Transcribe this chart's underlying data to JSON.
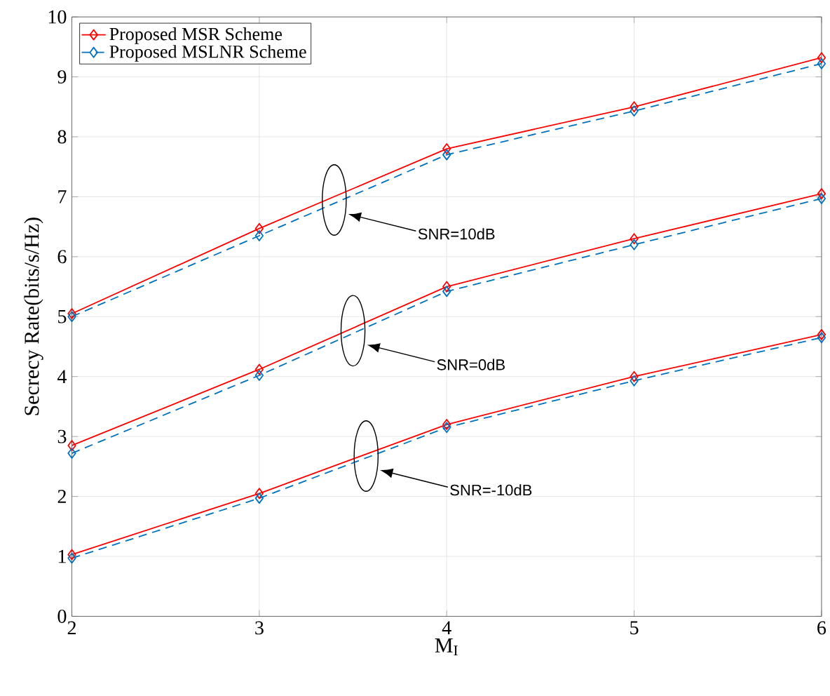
{
  "chart_data": {
    "type": "line",
    "xlabel": "M$_{I}$",
    "ylabel": "Secrecy Rate(bits/s/Hz)",
    "x": [
      2,
      3,
      4,
      5,
      6
    ],
    "xlim": [
      2,
      6
    ],
    "xticks": [
      2,
      3,
      4,
      5,
      6
    ],
    "ylim": [
      0,
      10
    ],
    "yticks": [
      0,
      1,
      2,
      3,
      4,
      5,
      6,
      7,
      8,
      9,
      10
    ],
    "grid": true,
    "legend": "top left",
    "marker": "diamond",
    "series": [
      {
        "name": "Proposed MSR Scheme",
        "color": "#ff0000",
        "line_style": "solid",
        "values": [
          5.05,
          6.47,
          7.8,
          8.5,
          9.32
        ]
      },
      {
        "name": "Proposed MSLNR Scheme",
        "color": "#0072bd",
        "line_style": "dashed",
        "values": [
          5.0,
          6.35,
          7.7,
          8.43,
          9.22
        ]
      },
      {
        "color": "#ff0000",
        "line_style": "solid",
        "values": [
          2.85,
          4.12,
          5.5,
          6.3,
          7.05
        ]
      },
      {
        "color": "#0072bd",
        "line_style": "dashed",
        "values": [
          2.72,
          4.02,
          5.42,
          6.2,
          6.97
        ]
      },
      {
        "color": "#ff0000",
        "line_style": "solid",
        "values": [
          1.03,
          2.05,
          3.2,
          4.0,
          4.7
        ]
      },
      {
        "color": "#0072bd",
        "line_style": "dashed",
        "values": [
          0.97,
          1.97,
          3.15,
          3.93,
          4.65
        ]
      }
    ],
    "annotations": [
      "SNR=10dB",
      "SNR=0dB",
      "SNR=-10dB"
    ]
  }
}
